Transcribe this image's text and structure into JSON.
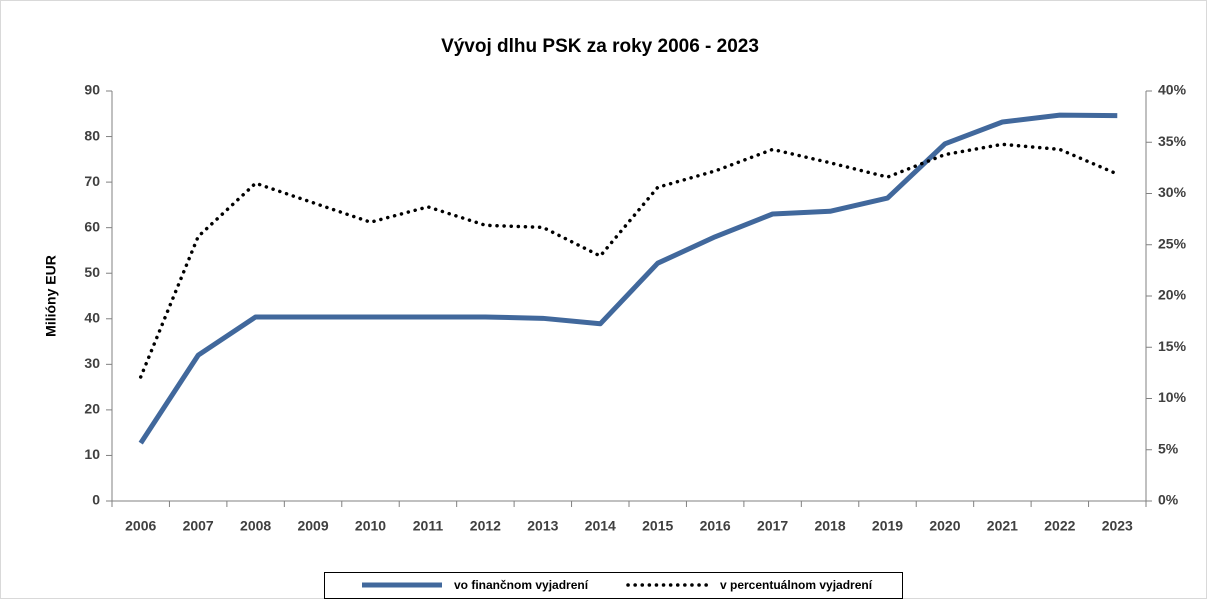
{
  "chart_data": {
    "type": "line",
    "title": "Vývoj dlhu PSK za roky 2006 - 2023",
    "y_label": "Milióny EUR",
    "categories": [
      "2006",
      "2007",
      "2008",
      "2009",
      "2010",
      "2011",
      "2012",
      "2013",
      "2014",
      "2015",
      "2016",
      "2017",
      "2018",
      "2019",
      "2020",
      "2021",
      "2022",
      "2023"
    ],
    "series": [
      {
        "name": "vo finančnom vyjadrení",
        "color": "#41689c",
        "style": "solid",
        "values": [
          12.7,
          32,
          40.4,
          40.4,
          40.4,
          40.4,
          40.4,
          40.1,
          38.9,
          52.2,
          58,
          63,
          63.6,
          66.5,
          78.4,
          83.2,
          84.7,
          84.6
        ]
      },
      {
        "name": "v percentuálnom vyjadrení",
        "color": "#000000",
        "style": "dotted",
        "axis": "y2",
        "values": [
          12.1,
          25.8,
          31.0,
          29.1,
          27.2,
          28.7,
          26.9,
          26.7,
          23.9,
          30.6,
          32.2,
          34.3,
          33.0,
          31.6,
          33.8,
          34.8,
          34.3,
          31.9
        ]
      }
    ],
    "ylim": [
      0,
      90
    ],
    "yticks": [
      0,
      10,
      20,
      30,
      40,
      50,
      60,
      70,
      80,
      90
    ],
    "y2lim": [
      0,
      40
    ],
    "y2ticks": [
      {
        "value": 0,
        "label": "0%"
      },
      {
        "value": 5,
        "label": "5%"
      },
      {
        "value": 10,
        "label": "10%"
      },
      {
        "value": 15,
        "label": "15%"
      },
      {
        "value": 20,
        "label": "20%"
      },
      {
        "value": 25,
        "label": "25%"
      },
      {
        "value": 30,
        "label": "30%"
      },
      {
        "value": 35,
        "label": "35%"
      },
      {
        "value": 40,
        "label": "40%"
      }
    ],
    "legend": "bottom",
    "grid": false
  }
}
